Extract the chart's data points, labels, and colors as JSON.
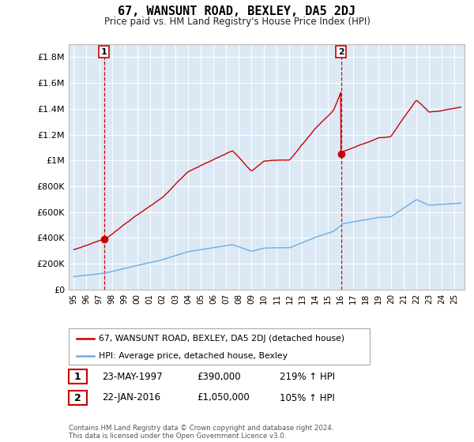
{
  "title": "67, WANSUNT ROAD, BEXLEY, DA5 2DJ",
  "subtitle": "Price paid vs. HM Land Registry's House Price Index (HPI)",
  "background_color": "#dce9f5",
  "plot_bg_color": "#dce9f5",
  "hpi_color": "#6aade4",
  "property_color": "#cc0000",
  "ylim": [
    0,
    1900000
  ],
  "yticks": [
    0,
    200000,
    400000,
    600000,
    800000,
    1000000,
    1200000,
    1400000,
    1600000,
    1800000
  ],
  "ytick_labels": [
    "£0",
    "£200K",
    "£400K",
    "£600K",
    "£800K",
    "£1M",
    "£1.2M",
    "£1.4M",
    "£1.6M",
    "£1.8M"
  ],
  "xlim_start": 1994.6,
  "xlim_end": 2025.8,
  "sale1_x": 1997.388,
  "sale1_y": 390000,
  "sale2_x": 2016.055,
  "sale2_y": 1050000,
  "legend_label_property": "67, WANSUNT ROAD, BEXLEY, DA5 2DJ (detached house)",
  "legend_label_hpi": "HPI: Average price, detached house, Bexley",
  "table_row1": [
    "1",
    "23-MAY-1997",
    "£390,000",
    "219% ↑ HPI"
  ],
  "table_row2": [
    "2",
    "22-JAN-2016",
    "£1,050,000",
    "105% ↑ HPI"
  ],
  "footer": "Contains HM Land Registry data © Crown copyright and database right 2024.\nThis data is licensed under the Open Government Licence v3.0.",
  "xtick_years": [
    1995,
    1996,
    1997,
    1998,
    1999,
    2000,
    2001,
    2002,
    2003,
    2004,
    2005,
    2006,
    2007,
    2008,
    2009,
    2010,
    2011,
    2012,
    2013,
    2014,
    2015,
    2016,
    2017,
    2018,
    2019,
    2020,
    2021,
    2022,
    2023,
    2024,
    2025
  ]
}
